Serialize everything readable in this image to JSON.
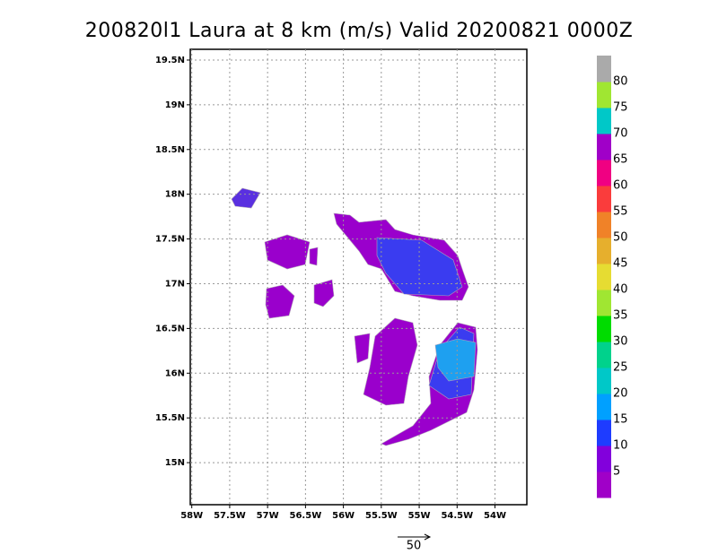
{
  "chart_data": {
    "type": "map",
    "title": "200820l1 Laura at 8 km (m/s) Valid 20200821 0000Z",
    "xlim": [
      -58.02,
      -53.58
    ],
    "ylim": [
      14.53,
      19.62
    ],
    "xticks": [
      {
        "value": -58,
        "label": "58W"
      },
      {
        "value": -57.5,
        "label": "57.5W"
      },
      {
        "value": -57,
        "label": "57W"
      },
      {
        "value": -56.5,
        "label": "56.5W"
      },
      {
        "value": -56,
        "label": "56W"
      },
      {
        "value": -55.5,
        "label": "55.5W"
      },
      {
        "value": -55,
        "label": "55W"
      },
      {
        "value": -54.5,
        "label": "54.5W"
      },
      {
        "value": -54,
        "label": "54W"
      }
    ],
    "yticks": [
      {
        "value": 15,
        "label": "15N"
      },
      {
        "value": 15.5,
        "label": "15.5N"
      },
      {
        "value": 16,
        "label": "16N"
      },
      {
        "value": 16.5,
        "label": "16.5N"
      },
      {
        "value": 17,
        "label": "17N"
      },
      {
        "value": 17.5,
        "label": "17.5N"
      },
      {
        "value": 18,
        "label": "18N"
      },
      {
        "value": 18.5,
        "label": "18.5N"
      },
      {
        "value": 19,
        "label": "19N"
      },
      {
        "value": 19.5,
        "label": "19.5N"
      }
    ],
    "grid": true,
    "colorbar": {
      "levels": [
        5,
        10,
        15,
        20,
        25,
        30,
        35,
        40,
        45,
        50,
        55,
        60,
        65,
        70,
        75,
        80
      ],
      "colors": [
        "#a000c8",
        "#8200dc",
        "#1e3cff",
        "#00a0ff",
        "#00c8c8",
        "#00d28c",
        "#00dc00",
        "#a0e632",
        "#e6dc32",
        "#e6af2d",
        "#f08228",
        "#fa3c3c",
        "#f00082",
        "#a000c8",
        "#00c8c8",
        "#a0e632",
        "#aaaaaa"
      ]
    },
    "reference_vector": 50
  }
}
